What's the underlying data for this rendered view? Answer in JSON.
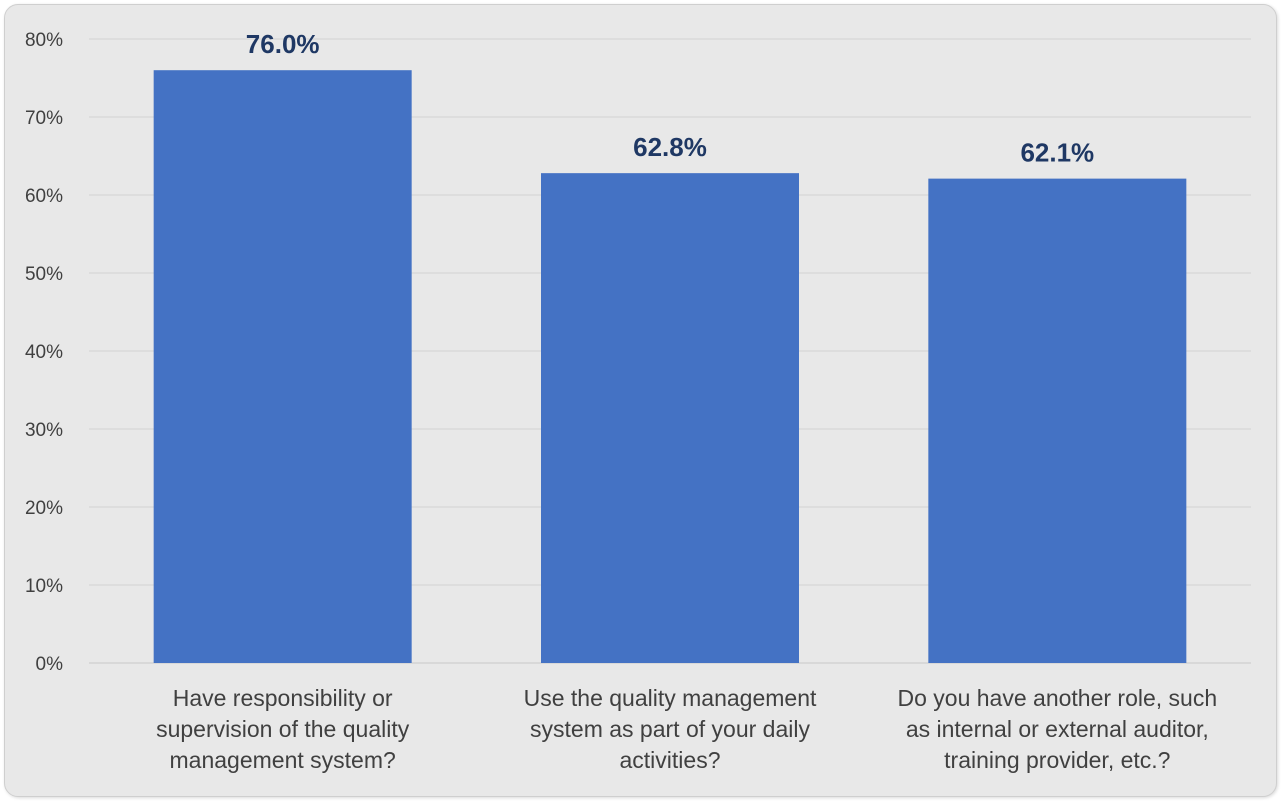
{
  "chart_data": {
    "type": "bar",
    "categories": [
      "Have responsibility or supervision of the quality management system?",
      "Use the quality management system as part of your daily activities?",
      "Do you have another role, such as internal or external auditor, training provider, etc.?"
    ],
    "category_lines": [
      [
        "Have responsibility or",
        "supervision of the quality",
        "management system?"
      ],
      [
        "Use the quality management",
        "system as part of your daily",
        "activities?"
      ],
      [
        "Do you have another role, such",
        "as internal or external auditor,",
        "training provider, etc.?"
      ]
    ],
    "values": [
      76.0,
      62.8,
      62.1
    ],
    "data_labels": [
      "76.0%",
      "62.8%",
      "62.1%"
    ],
    "ylim": [
      0,
      80
    ],
    "yticks": [
      0,
      10,
      20,
      30,
      40,
      50,
      60,
      70,
      80
    ],
    "ytick_labels": [
      "0%",
      "10%",
      "20%",
      "30%",
      "40%",
      "50%",
      "60%",
      "70%",
      "80%"
    ],
    "title": "",
    "xlabel": "",
    "ylabel": "",
    "grid": true,
    "legend": "none",
    "bar_color": "#4472c4",
    "data_label_color": "#1f3864"
  }
}
